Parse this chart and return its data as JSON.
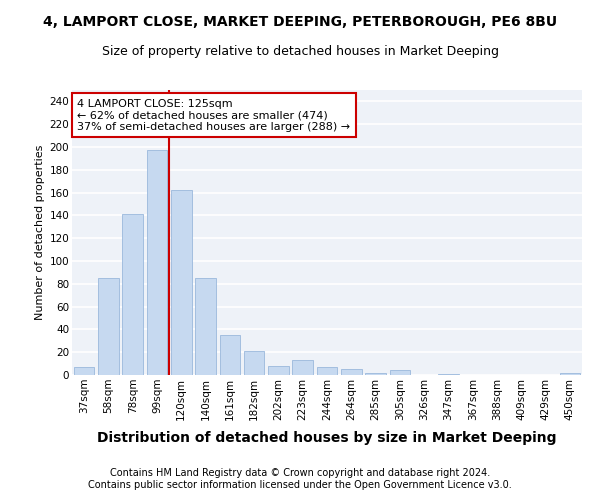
{
  "title": "4, LAMPORT CLOSE, MARKET DEEPING, PETERBOROUGH, PE6 8BU",
  "subtitle": "Size of property relative to detached houses in Market Deeping",
  "xlabel": "Distribution of detached houses by size in Market Deeping",
  "ylabel": "Number of detached properties",
  "categories": [
    "37sqm",
    "58sqm",
    "78sqm",
    "99sqm",
    "120sqm",
    "140sqm",
    "161sqm",
    "182sqm",
    "202sqm",
    "223sqm",
    "244sqm",
    "264sqm",
    "285sqm",
    "305sqm",
    "326sqm",
    "347sqm",
    "367sqm",
    "388sqm",
    "409sqm",
    "429sqm",
    "450sqm"
  ],
  "values": [
    7,
    85,
    141,
    197,
    162,
    85,
    35,
    21,
    8,
    13,
    7,
    5,
    2,
    4,
    0,
    1,
    0,
    0,
    0,
    0,
    2
  ],
  "bar_color": "#c6d9f0",
  "bar_edge_color": "#9ab8dc",
  "vline_x_index": 4,
  "vline_color": "#cc0000",
  "annotation_text": "4 LAMPORT CLOSE: 125sqm\n← 62% of detached houses are smaller (474)\n37% of semi-detached houses are larger (288) →",
  "annotation_box_color": "#ffffff",
  "annotation_box_edge": "#cc0000",
  "ylim": [
    0,
    250
  ],
  "yticks": [
    0,
    20,
    40,
    60,
    80,
    100,
    120,
    140,
    160,
    180,
    200,
    220,
    240
  ],
  "footer_line1": "Contains HM Land Registry data © Crown copyright and database right 2024.",
  "footer_line2": "Contains public sector information licensed under the Open Government Licence v3.0.",
  "plot_bg_color": "#eef2f8",
  "grid_color": "#ffffff",
  "title_fontsize": 10,
  "subtitle_fontsize": 9,
  "xlabel_fontsize": 10,
  "ylabel_fontsize": 8,
  "tick_fontsize": 7.5,
  "annotation_fontsize": 8,
  "footer_fontsize": 7
}
